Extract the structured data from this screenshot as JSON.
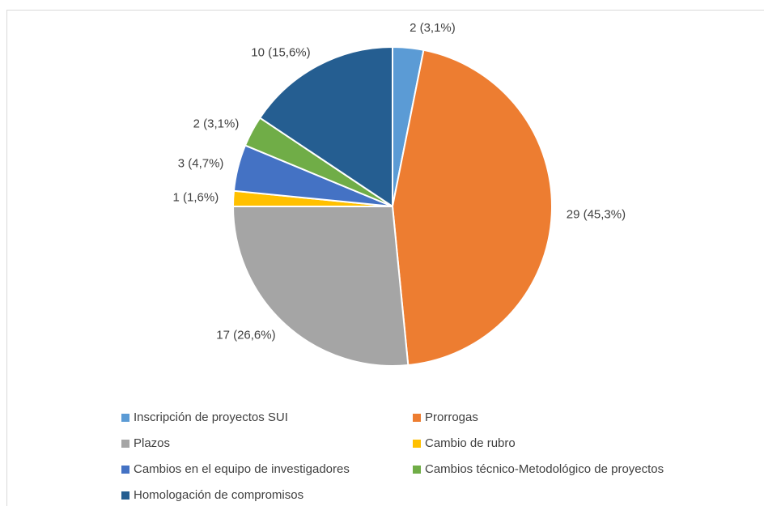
{
  "chart_data": {
    "type": "pie",
    "categories": [
      "Inscripción de proyectos SUI",
      "Prorrogas",
      "Plazos",
      "Cambio de rubro",
      "Cambios en el equipo de investigadores",
      "Cambios técnico-Metodológico de proyectos",
      "Homologación de compromisos"
    ],
    "values": [
      2,
      29,
      17,
      1,
      3,
      2,
      10
    ],
    "value_labels": [
      "2 (3,1%)",
      "29 (45,3%)",
      "17 (26,6%)",
      "1 (1,6%)",
      "3 (4,7%)",
      "2 (3,1%)",
      "10 (15,6%)"
    ],
    "colors": [
      "#5b9bd5",
      "#ed7d31",
      "#a5a5a5",
      "#ffc000",
      "#4472c4",
      "#70ad47",
      "#255e91"
    ],
    "legend": "bottom"
  }
}
